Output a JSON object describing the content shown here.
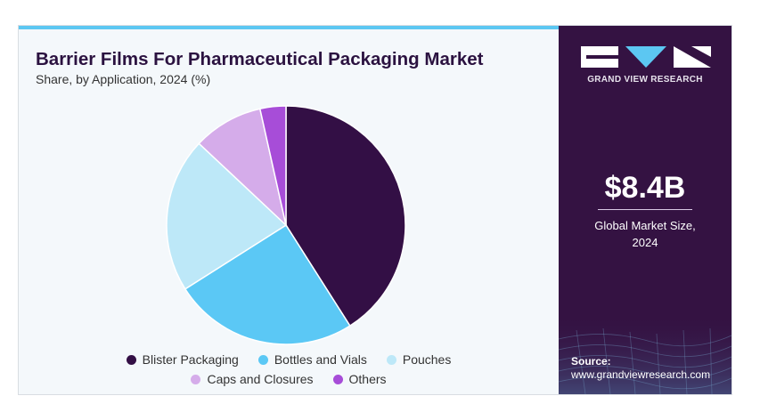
{
  "header": {
    "title": "Barrier Films For Pharmaceutical Packaging Market",
    "subtitle": "Share, by Application, 2024 (%)"
  },
  "chart_data": {
    "type": "pie",
    "title": "Barrier Films For Pharmaceutical Packaging Market",
    "subtitle": "Share, by Application, 2024 (%)",
    "categories": [
      "Blister Packaging",
      "Bottles and Vials",
      "Pouches",
      "Caps and Closures",
      "Others"
    ],
    "values": [
      41,
      25,
      21,
      9.5,
      3.5
    ],
    "colors": [
      "#330f45",
      "#5bc8f5",
      "#bde8f8",
      "#d5acea",
      "#a74dd8"
    ],
    "legend_position": "bottom"
  },
  "legend": {
    "rows": [
      [
        {
          "label": "Blister Packaging",
          "color": "#330f45"
        },
        {
          "label": "Bottles and Vials",
          "color": "#5bc8f5"
        },
        {
          "label": "Pouches",
          "color": "#bde8f8"
        }
      ],
      [
        {
          "label": "Caps and Closures",
          "color": "#d5acea"
        },
        {
          "label": "Others",
          "color": "#a74dd8"
        }
      ]
    ]
  },
  "sidebar": {
    "brand": "GRAND VIEW RESEARCH",
    "market_value": "$8.4B",
    "market_label_line1": "Global Market Size,",
    "market_label_line2": "2024",
    "source_label": "Source:",
    "source_url": "www.grandviewresearch.com"
  },
  "colors": {
    "sidebar_bg": "#341242",
    "accent": "#5cc7f2",
    "title": "#2b1240"
  }
}
